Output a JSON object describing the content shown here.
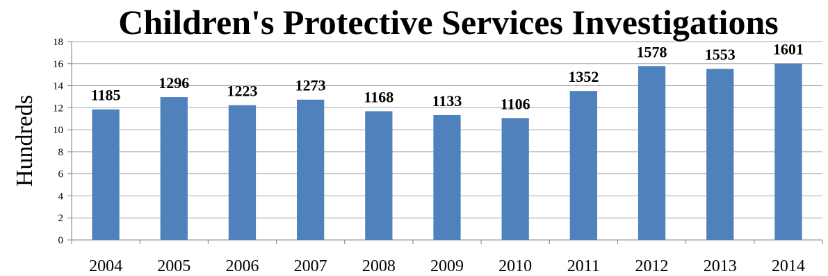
{
  "chart_data": {
    "type": "bar",
    "title": "Children's Protective Services Investigations",
    "xlabel": "",
    "ylabel": "Hundreds",
    "categories": [
      "2004",
      "2005",
      "2006",
      "2007",
      "2008",
      "2009",
      "2010",
      "2011",
      "2012",
      "2013",
      "2014"
    ],
    "values": [
      11.85,
      12.96,
      12.23,
      12.73,
      11.68,
      11.33,
      11.06,
      13.52,
      15.78,
      15.53,
      16.01
    ],
    "data_labels": [
      "1185",
      "1296",
      "1223",
      "1273",
      "1168",
      "1133",
      "1106",
      "1352",
      "1578",
      "1553",
      "1601"
    ],
    "ylim": [
      0,
      18
    ],
    "yticks": [
      "0",
      "2",
      "4",
      "6",
      "8",
      "10",
      "12",
      "14",
      "16",
      "18"
    ],
    "grid": true,
    "legend": "none",
    "bar_color": "#4f81bd"
  }
}
